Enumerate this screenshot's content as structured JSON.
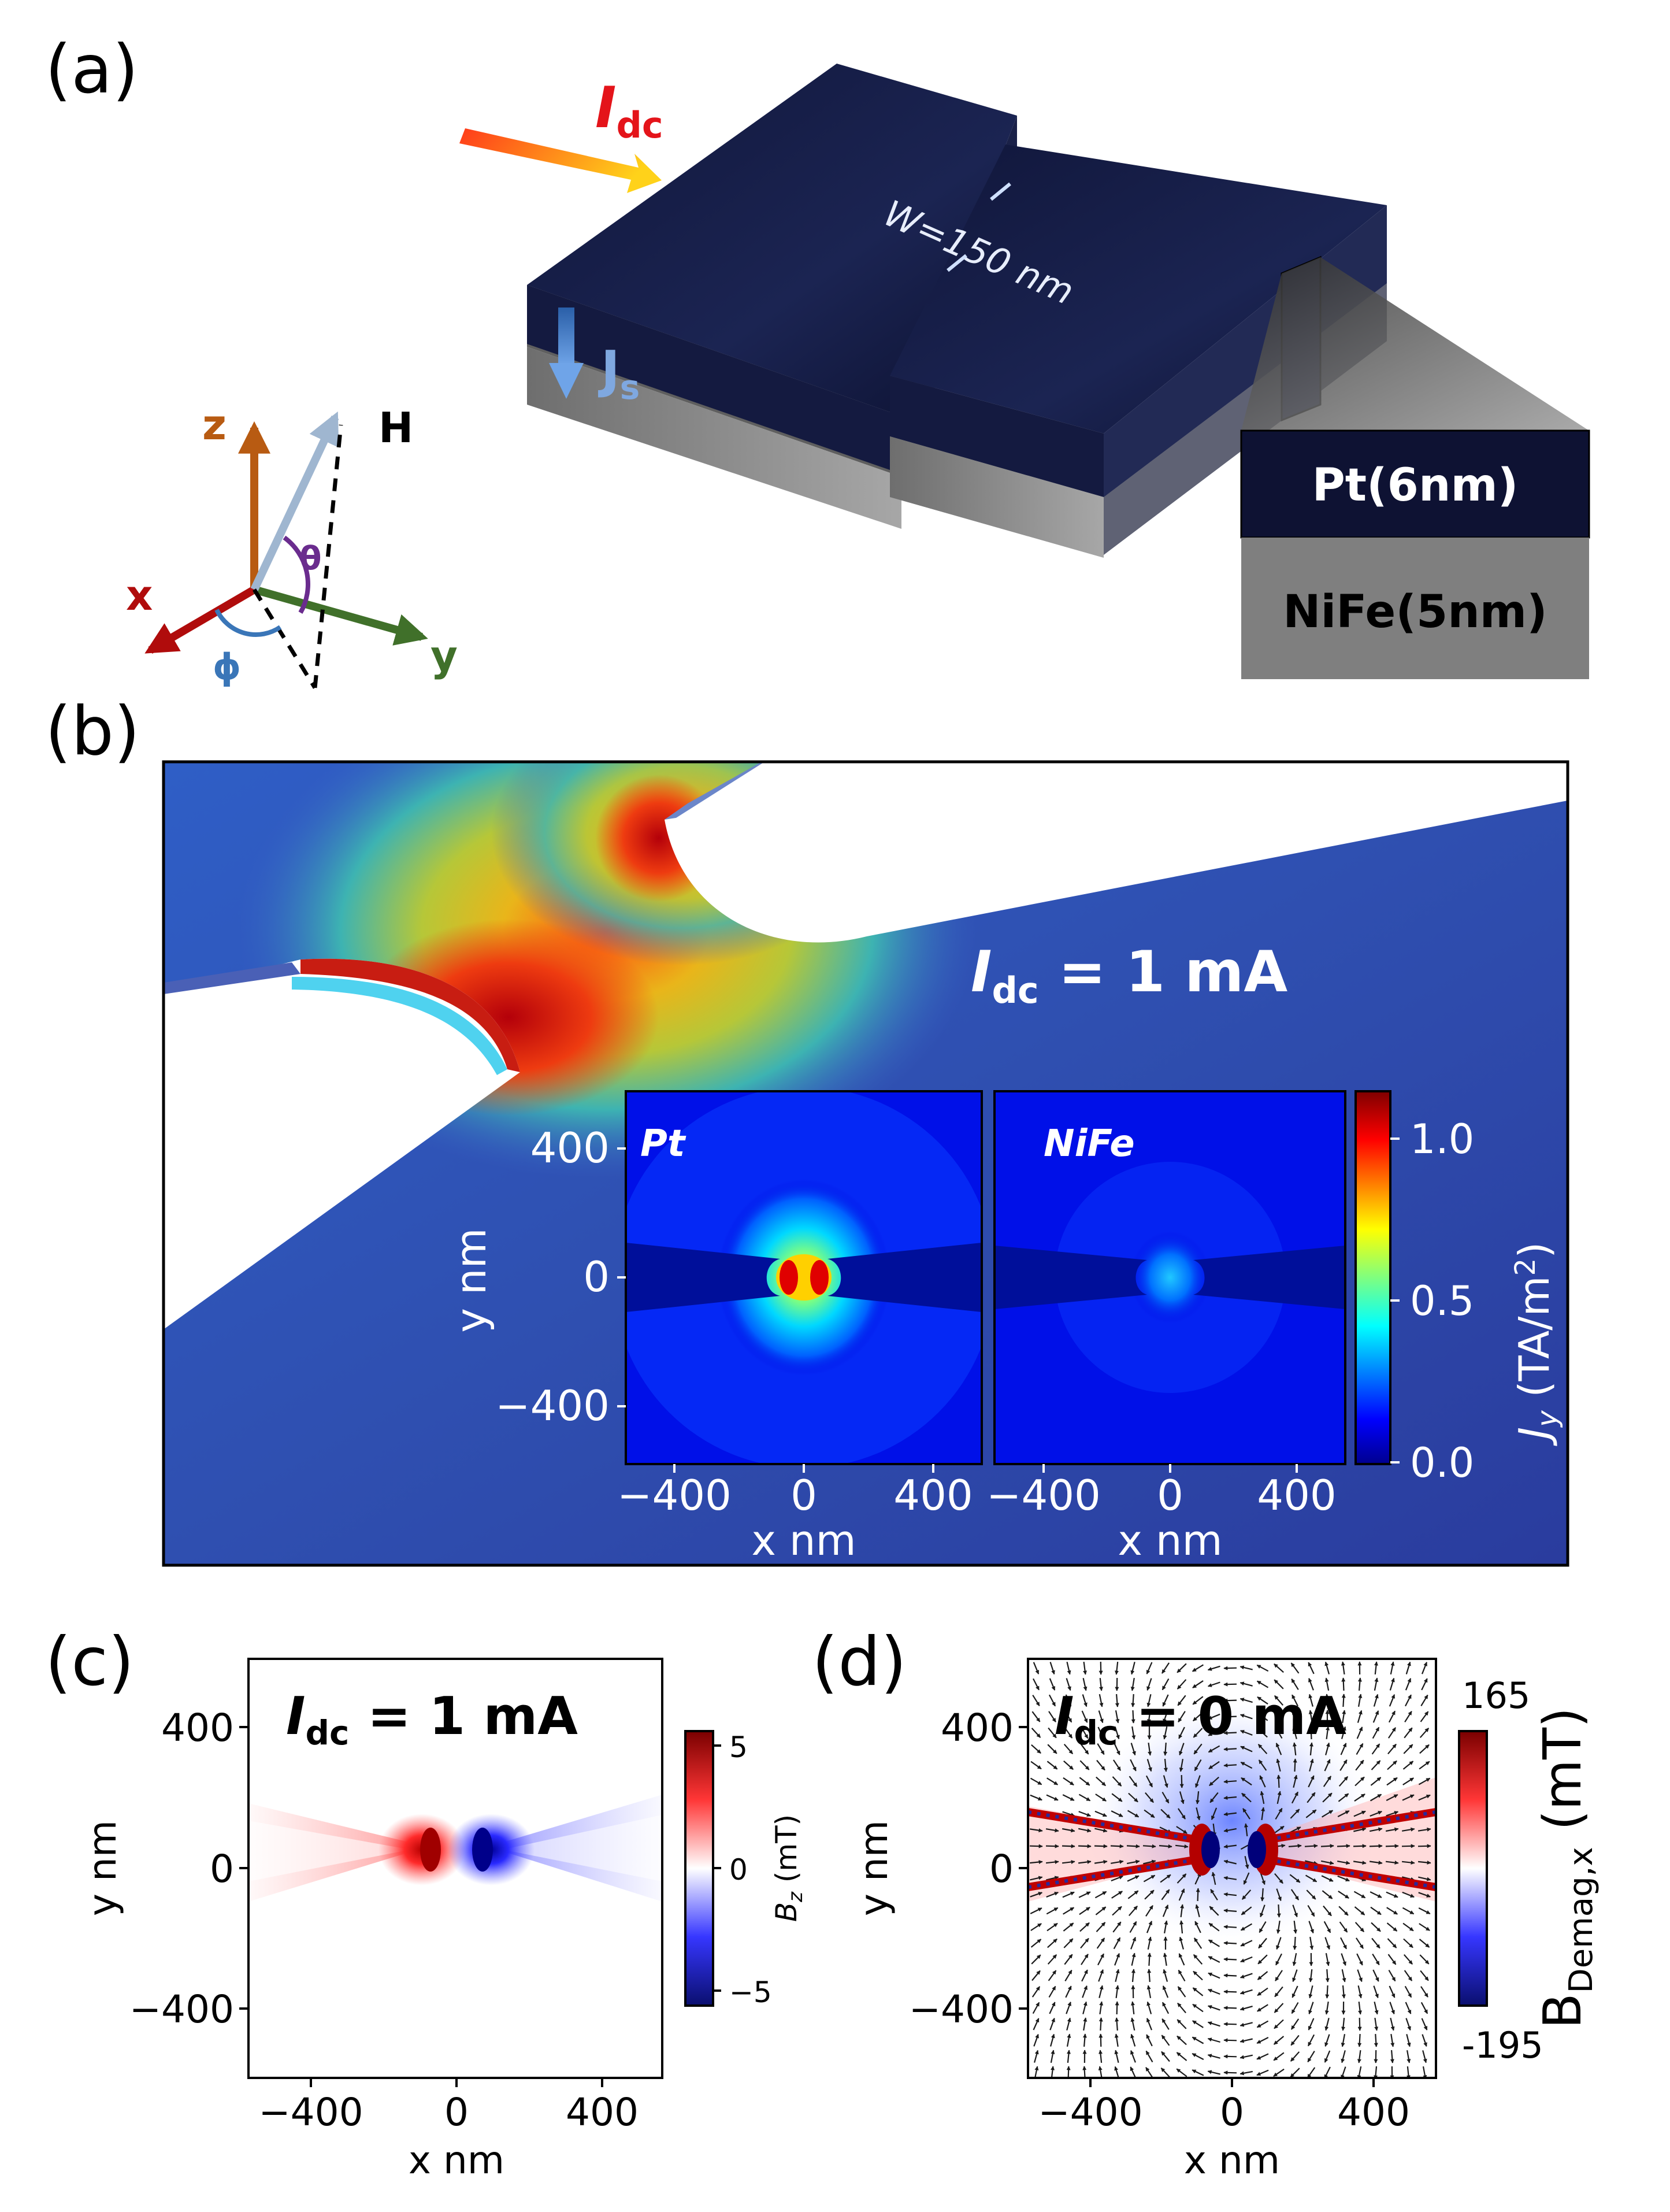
{
  "panel_labels": {
    "a": "(a)",
    "b": "(b)",
    "c": "(c)",
    "d": "(d)"
  },
  "panel_a": {
    "current_I": "I",
    "current_sub": "dc",
    "spin_J": "J",
    "spin_sub": "s",
    "width_label": "W=150 nm",
    "layer_pt": "Pt(6nm)",
    "layer_nife": "NiFe(5nm)",
    "axes": {
      "z": "z",
      "x": "x",
      "y": "y",
      "H": "H",
      "theta": "θ",
      "phi": "ϕ"
    },
    "colors": {
      "pt": "#0e1233",
      "nife": "#7f7f7f",
      "z_axis": "#b85b12",
      "x_axis": "#b00c0c",
      "y_axis": "#40702a",
      "H_axis": "#9fb6d0",
      "theta": "#6a2c8e",
      "phi": "#3a76b8"
    }
  },
  "panel_b": {
    "title_I": "I",
    "title_sub": "dc",
    "title_rest": " = 1 mA",
    "inset_pt_label": "Pt",
    "inset_nife_label": "NiFe",
    "ylabel": "y nm",
    "xlabel_left": "x nm",
    "xlabel_right": "x nm",
    "yticks": [
      "400",
      "0",
      "−400"
    ],
    "xticks": [
      "−400",
      "0",
      "400"
    ],
    "colorbar_ticks": [
      "0.0",
      "0.5",
      "1.0"
    ],
    "colorbar_label_J": "J",
    "colorbar_label_sub": "y",
    "colorbar_label_unit": " (TA/m",
    "colorbar_label_sup": "2",
    "colorbar_label_end": ")"
  },
  "panel_c": {
    "title_I": "I",
    "title_sub": "dc",
    "title_rest": " = 1 mA",
    "ylabel": "y nm",
    "xlabel": "x nm",
    "yticks": [
      "400",
      "0",
      "−400"
    ],
    "xticks": [
      "−400",
      "0",
      "400"
    ],
    "colorbar_ticks": [
      "5",
      "0",
      "−5"
    ],
    "colorbar_label_B": "B",
    "colorbar_label_sub": "z",
    "colorbar_label_unit": " (mT)"
  },
  "panel_d": {
    "title_I": "I",
    "title_sub": "dc",
    "title_rest": " = 0 mA",
    "ylabel": "y nm",
    "xlabel": "x nm",
    "yticks": [
      "400",
      "0",
      "−400"
    ],
    "xticks": [
      "−400",
      "0",
      "400"
    ],
    "colorbar_max": "165",
    "colorbar_min": "-195",
    "colorbar_label_B": "B",
    "colorbar_label_sub": "Demag,x",
    "colorbar_label_unit": " (mT)"
  },
  "chart_data": [
    {
      "type": "heatmap",
      "title": "Pt",
      "xlabel": "x nm",
      "ylabel": "y nm",
      "xlim": [
        -500,
        500
      ],
      "ylim": [
        -500,
        500
      ],
      "colorbar": {
        "label": "Jy (TA/m2)",
        "range": [
          0.0,
          1.15
        ],
        "ticks": [
          0.0,
          0.5,
          1.0
        ]
      }
    },
    {
      "type": "heatmap",
      "title": "NiFe",
      "xlabel": "x nm",
      "xlim": [
        -500,
        500
      ],
      "ylim": [
        -500,
        500
      ],
      "colorbar": {
        "label": "Jy (TA/m2)",
        "range": [
          0.0,
          1.15
        ],
        "ticks": [
          0.0,
          0.5,
          1.0
        ]
      }
    },
    {
      "type": "heatmap",
      "title": "Idc = 1 mA",
      "xlabel": "x nm",
      "ylabel": "y nm",
      "xlim": [
        -540,
        540
      ],
      "ylim": [
        -540,
        540
      ],
      "colorbar": {
        "label": "Bz (mT)",
        "range": [
          -5.5,
          5.5
        ],
        "ticks": [
          -5,
          0,
          5
        ]
      }
    },
    {
      "type": "heatmap",
      "title": "Idc = 0 mA",
      "xlabel": "x nm",
      "ylabel": "y nm",
      "xlim": [
        -540,
        540
      ],
      "ylim": [
        -540,
        540
      ],
      "colorbar": {
        "label": "BDemag,x (mT)",
        "range": [
          -195,
          165
        ],
        "ticks": [
          -195,
          165
        ]
      }
    }
  ]
}
